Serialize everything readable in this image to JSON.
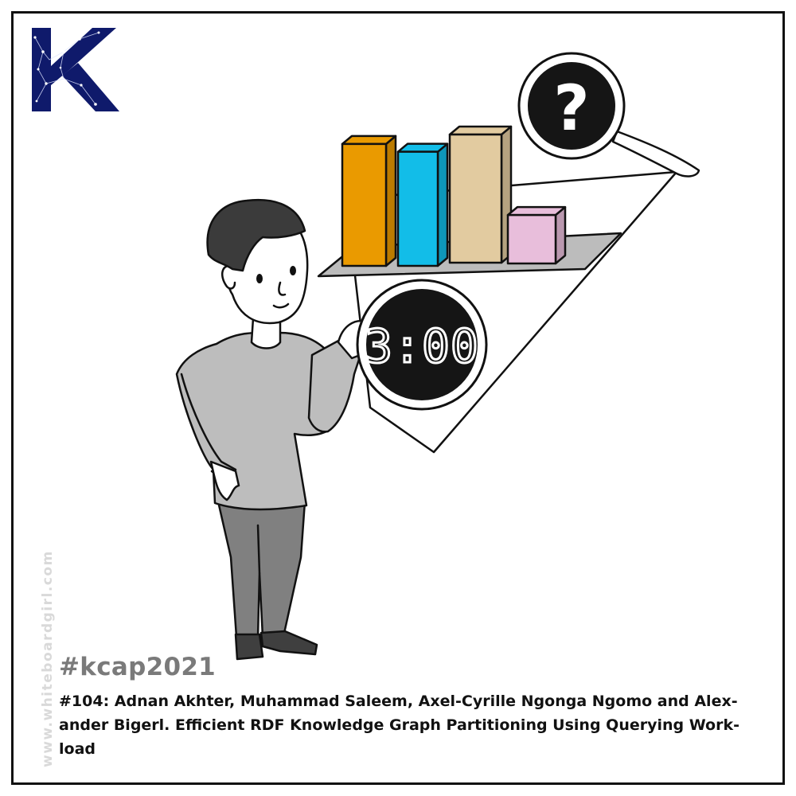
{
  "logo": {
    "letter": "K",
    "color": "#0f1a6b"
  },
  "clock": {
    "display": "3:00"
  },
  "question_mark": "?",
  "chart_data": {
    "type": "bar",
    "categories": [
      "",
      "",
      "",
      ""
    ],
    "values": [
      7.8,
      7.3,
      8.2,
      3.1
    ],
    "colors": [
      "#ea9a00",
      "#12bde8",
      "#e2cba0",
      "#e8bedb"
    ],
    "ylim": [
      0,
      9
    ],
    "grid": false
  },
  "watermark": "www.whiteboardgirl.com",
  "hashtag": "#kcap2021",
  "caption": {
    "line1": "#104: Adnan Akhter, Muhammad Saleem, Axel-Cyrille Ngonga Ngomo and Alex-",
    "line2": "ander Bigerl. Efficient RDF Knowledge Graph Partitioning Using Querying Work-",
    "line3": "load"
  }
}
